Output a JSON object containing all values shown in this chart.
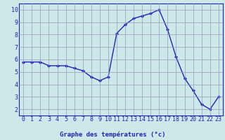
{
  "x": [
    0,
    1,
    2,
    3,
    4,
    5,
    6,
    7,
    8,
    9,
    10,
    11,
    12,
    13,
    14,
    15,
    16,
    17,
    18,
    19,
    20,
    21,
    22,
    23
  ],
  "y": [
    5.8,
    5.8,
    5.8,
    5.5,
    5.5,
    5.5,
    5.3,
    5.1,
    4.6,
    4.3,
    4.6,
    8.1,
    8.8,
    9.3,
    9.5,
    9.7,
    10.0,
    8.4,
    6.2,
    4.5,
    3.5,
    2.4,
    2.0,
    3.0
  ],
  "line_color": "#2222bb",
  "marker": "D",
  "marker_size": 2.0,
  "bg_color": "#cce8e8",
  "grid_color": "#9999bb",
  "xlabel": "Graphe des températures (°c)",
  "xlabel_color": "#2222bb",
  "xlabel_bg": "#cce8e8",
  "ylabel_ticks": [
    2,
    3,
    4,
    5,
    6,
    7,
    8,
    9,
    10
  ],
  "ylim": [
    1.5,
    10.5
  ],
  "xlim": [
    -0.5,
    23.5
  ],
  "tick_color": "#2222bb",
  "axis_label_fontsize": 6.5,
  "tick_fontsize": 6.0,
  "linewidth": 1.0
}
